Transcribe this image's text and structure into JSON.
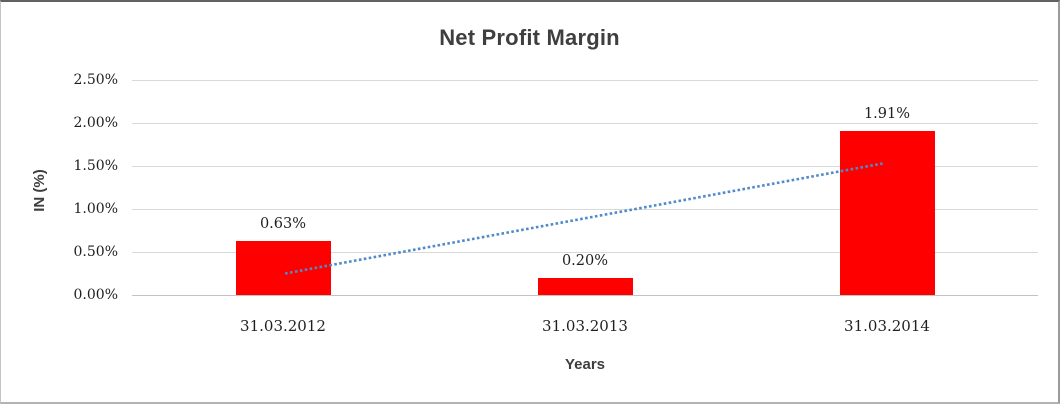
{
  "chart_data": {
    "type": "bar",
    "title": "Net Profit Margin",
    "xlabel": "Years",
    "ylabel": "IN (%)",
    "categories": [
      "31.03.2012",
      "31.03.2013",
      "31.03.2014"
    ],
    "values": [
      0.63,
      0.2,
      1.91
    ],
    "data_labels": [
      "0.63%",
      "0.20%",
      "1.91%"
    ],
    "ylim": [
      0,
      2.5
    ],
    "ytick_step": 0.5,
    "ytick_labels": [
      "0.00%",
      "0.50%",
      "1.00%",
      "1.50%",
      "2.00%",
      "2.50%"
    ],
    "grid": true,
    "legend": "none",
    "bar_color": "#ff0000",
    "trendline": {
      "style": "dotted",
      "color": "#4e8bc8",
      "start": {
        "x_frac": 0.169,
        "value": 0.25
      },
      "end": {
        "x_frac": 0.829,
        "value": 1.53
      }
    },
    "colors": {
      "gridline": "#d9d9d9",
      "axis_line": "#c3c3c3",
      "title_text": "#3f3f3f",
      "tick_text": "#1f1f1f"
    }
  }
}
